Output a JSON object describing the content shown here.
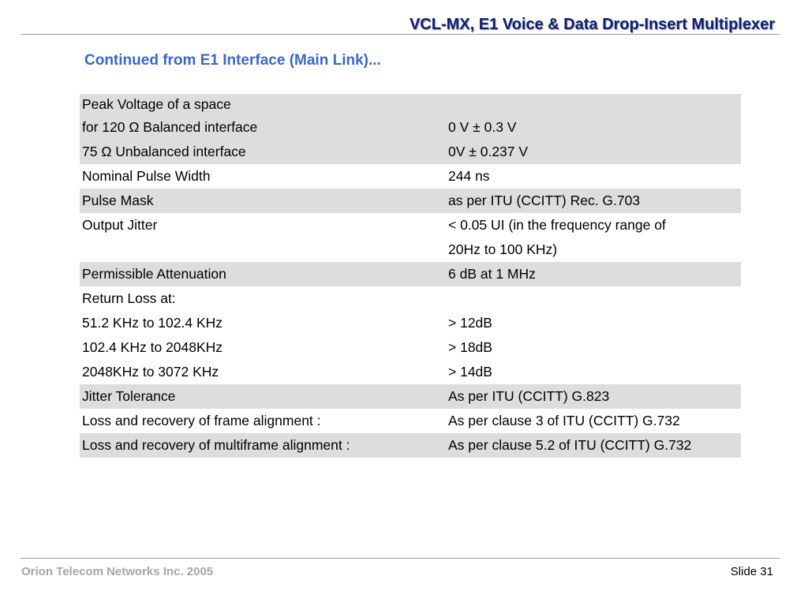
{
  "header": {
    "title": "VCL-MX, E1 Voice & Data Drop-Insert Multiplexer"
  },
  "subtitle": "Continued from E1 Interface (Main Link)...",
  "rows": [
    {
      "shaded": true,
      "lines": [
        {
          "label": "Peak Voltage of a space",
          "value": ""
        },
        {
          "label": "for 120 Ω Balanced interface",
          "value": "0 V ±  0.3 V"
        },
        {
          "label": "75 Ω Unbalanced interface",
          "value": "0V ±  0.237 V"
        }
      ]
    },
    {
      "shaded": false,
      "lines": [
        {
          "label": "Nominal Pulse Width",
          "value": "244 ns"
        }
      ]
    },
    {
      "shaded": true,
      "lines": [
        {
          "label": "Pulse Mask",
          "value": "as  per  ITU (CCITT)  Rec. G.703"
        }
      ]
    },
    {
      "shaded": false,
      "lines": [
        {
          "label": "Output Jitter",
          "value": "<  0.05 UI (in  the  frequency  range of"
        },
        {
          "label": "",
          "value": "20Hz  to 100 KHz)"
        }
      ]
    },
    {
      "shaded": true,
      "lines": [
        {
          "label": "Permissible Attenuation",
          "value": "6 dB  at  1 MHz"
        }
      ]
    },
    {
      "shaded": false,
      "lines": [
        {
          "label": "Return Loss at:",
          "value": ""
        },
        {
          "label": "51.2 KHz to 102.4 KHz",
          "value": "> 12dB"
        },
        {
          "label": "102.4 KHz to 2048KHz",
          "value": "> 18dB"
        },
        {
          "label": "2048KHz to 3072 KHz",
          "value": "> 14dB"
        }
      ]
    },
    {
      "shaded": true,
      "lines": [
        {
          "label": "Jitter Tolerance",
          "value": "As  per  ITU (CCITT) G.823"
        }
      ]
    },
    {
      "shaded": false,
      "lines": [
        {
          "label": "Loss and recovery of frame alignment :",
          "value": "As per clause 3 of ITU (CCITT) G.732"
        }
      ]
    },
    {
      "shaded": true,
      "lines": [
        {
          "label": "Loss and recovery of multiframe alignment :",
          "value": "As per clause 5.2 of ITU (CCITT) G.732"
        }
      ]
    }
  ],
  "footer": {
    "company": "Orion Telecom Networks Inc. 2005",
    "slide": "Slide 31"
  }
}
